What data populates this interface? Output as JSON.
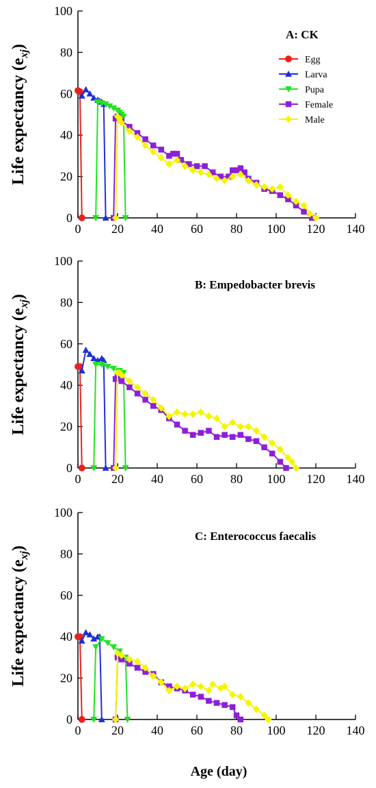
{
  "colors": {
    "Egg": "#e8221e",
    "Larva": "#1f2fd6",
    "Pupa": "#22e322",
    "Female": "#8e1fd8",
    "Male": "#f5f500"
  },
  "chart_data": [
    {
      "type": "line",
      "title": "A: CK",
      "ylabel": "Life expectancy (e",
      "ylabel_sub": "xj",
      "ylabel_close": ")",
      "xlabel": "",
      "xlim": [
        0,
        140
      ],
      "ylim": [
        0,
        100
      ],
      "xticks": [
        "0",
        "20",
        "40",
        "60",
        "80",
        "100",
        "120",
        "140"
      ],
      "yticks": [
        "0",
        "20",
        "40",
        "60",
        "80",
        "100"
      ],
      "legend": "top-right",
      "grid": false,
      "series": [
        {
          "name": "Egg",
          "marker": "circle",
          "x": [
            0,
            1,
            2
          ],
          "y": [
            61.5,
            61,
            0
          ]
        },
        {
          "name": "Larva",
          "marker": "triangle-up",
          "x": [
            2,
            4,
            6,
            8,
            10,
            11,
            12,
            13,
            14
          ],
          "y": [
            59,
            62,
            60,
            58,
            57,
            56.5,
            56,
            55,
            0
          ]
        },
        {
          "name": "Pupa",
          "marker": "triangle-down",
          "x": [
            9,
            10,
            12,
            14,
            16,
            18,
            20,
            21,
            22,
            23,
            24
          ],
          "y": [
            0,
            56,
            55.5,
            55,
            54,
            53,
            52,
            51,
            50,
            49,
            0
          ]
        },
        {
          "name": "Female",
          "marker": "square",
          "x": [
            18,
            19,
            20,
            22,
            26,
            30,
            34,
            38,
            42,
            46,
            48,
            50,
            52,
            56,
            60,
            64,
            68,
            72,
            76,
            78,
            80,
            82,
            84,
            86,
            90,
            94,
            98,
            102,
            106,
            110,
            114,
            118
          ],
          "y": [
            0,
            48,
            49,
            47,
            44,
            41,
            38,
            35,
            33,
            30,
            31,
            31,
            28,
            26,
            25,
            25,
            22,
            20,
            20,
            23,
            23,
            24,
            22,
            19,
            17,
            14,
            13,
            11,
            9,
            6,
            3,
            0
          ]
        },
        {
          "name": "Male",
          "marker": "diamond",
          "x": [
            19,
            20,
            21,
            22,
            26,
            30,
            34,
            38,
            42,
            46,
            50,
            54,
            58,
            62,
            66,
            70,
            74,
            78,
            82,
            86,
            90,
            94,
            98,
            102,
            106,
            110,
            114,
            117,
            120
          ],
          "y": [
            0,
            49,
            48,
            46,
            42,
            39,
            35,
            32,
            29,
            26,
            28,
            25,
            23,
            22,
            21,
            19,
            18,
            20,
            21,
            18,
            16,
            15,
            14,
            15,
            11,
            8,
            6,
            2,
            0
          ]
        }
      ]
    },
    {
      "type": "line",
      "title": "B: Empedobacter brevis",
      "ylabel": "Life expectancy (e",
      "ylabel_sub": "xj",
      "ylabel_close": ")",
      "xlabel": "",
      "xlim": [
        0,
        140
      ],
      "ylim": [
        0,
        100
      ],
      "xticks": [
        "0",
        "20",
        "40",
        "60",
        "80",
        "100",
        "120",
        "140"
      ],
      "yticks": [
        "0",
        "20",
        "40",
        "60",
        "80",
        "100"
      ],
      "legend": "",
      "grid": false,
      "series": [
        {
          "name": "Egg",
          "marker": "circle",
          "x": [
            0,
            1,
            2
          ],
          "y": [
            49,
            49,
            0
          ]
        },
        {
          "name": "Larva",
          "marker": "triangle-up",
          "x": [
            2,
            4,
            6,
            8,
            10,
            12,
            13,
            14
          ],
          "y": [
            47,
            57,
            55,
            53,
            52,
            53,
            52,
            0
          ]
        },
        {
          "name": "Pupa",
          "marker": "triangle-down",
          "x": [
            8,
            9,
            12,
            15,
            18,
            21,
            23,
            24
          ],
          "y": [
            0,
            50,
            50,
            49,
            48,
            47,
            46,
            0
          ]
        },
        {
          "name": "Female",
          "marker": "square",
          "x": [
            18,
            19,
            20,
            22,
            26,
            30,
            34,
            38,
            42,
            46,
            50,
            54,
            58,
            62,
            66,
            70,
            74,
            78,
            82,
            86,
            90,
            94,
            98,
            102,
            105
          ],
          "y": [
            0,
            43,
            44,
            42,
            39,
            36,
            33,
            30,
            28,
            24,
            21,
            18,
            16,
            17,
            18,
            15,
            16,
            15,
            16,
            14,
            13,
            10,
            7,
            3,
            0
          ]
        },
        {
          "name": "Male",
          "marker": "diamond",
          "x": [
            19,
            20,
            21,
            22,
            26,
            30,
            34,
            38,
            42,
            46,
            50,
            54,
            58,
            62,
            66,
            70,
            74,
            78,
            82,
            86,
            90,
            94,
            98,
            102,
            106,
            108,
            110
          ],
          "y": [
            0,
            46,
            46,
            45,
            42,
            39,
            36,
            33,
            29,
            25,
            27,
            26,
            26,
            27,
            25,
            24,
            20,
            22,
            20,
            20,
            18,
            15,
            12,
            9,
            5,
            3,
            0
          ]
        }
      ]
    },
    {
      "type": "line",
      "title": "C: Enterococcus  faecalis",
      "ylabel": "Life expectancy (e",
      "ylabel_sub": "xj",
      "ylabel_close": ")",
      "xlabel": "Age (day)",
      "xlim": [
        0,
        140
      ],
      "ylim": [
        0,
        100
      ],
      "xticks": [
        "0",
        "20",
        "40",
        "60",
        "80",
        "100",
        "120",
        "140"
      ],
      "yticks": [
        "0",
        "20",
        "40",
        "60",
        "80",
        "100"
      ],
      "legend": "",
      "grid": false,
      "series": [
        {
          "name": "Egg",
          "marker": "circle",
          "x": [
            0,
            1,
            2
          ],
          "y": [
            40,
            40,
            0
          ]
        },
        {
          "name": "Larva",
          "marker": "triangle-up",
          "x": [
            2,
            4,
            6,
            8,
            10,
            11,
            12
          ],
          "y": [
            38,
            42,
            41,
            39,
            40,
            40,
            0
          ]
        },
        {
          "name": "Pupa",
          "marker": "triangle-down",
          "x": [
            8,
            9,
            12,
            15,
            18,
            21,
            24,
            25
          ],
          "y": [
            0,
            35,
            39,
            37,
            35,
            33,
            30,
            0
          ]
        },
        {
          "name": "Female",
          "marker": "square",
          "x": [
            19,
            20,
            22,
            26,
            30,
            34,
            38,
            42,
            46,
            50,
            54,
            58,
            62,
            66,
            70,
            74,
            78,
            80,
            82
          ],
          "y": [
            0,
            30,
            29,
            27,
            25,
            23,
            22,
            18,
            16,
            15,
            14,
            12,
            11,
            9,
            8,
            7,
            6,
            2,
            0
          ]
        },
        {
          "name": "Male",
          "marker": "diamond",
          "x": [
            19,
            20,
            22,
            26,
            30,
            34,
            38,
            42,
            46,
            50,
            54,
            58,
            62,
            66,
            68,
            72,
            74,
            78,
            82,
            86,
            90,
            94,
            96
          ],
          "y": [
            0,
            32,
            31,
            29,
            28,
            25,
            21,
            18,
            14,
            16,
            15,
            17,
            16,
            14,
            17,
            15,
            16,
            12,
            11,
            8,
            5,
            2,
            0
          ]
        }
      ]
    }
  ]
}
